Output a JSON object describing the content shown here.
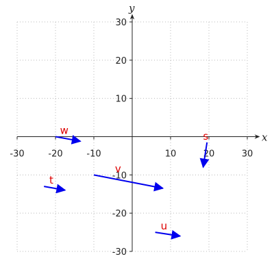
{
  "chart_data": {
    "type": "vector-field",
    "title": "",
    "xlabel": "x",
    "ylabel": "y",
    "xlim": [
      -30,
      30
    ],
    "ylim": [
      -30,
      30
    ],
    "xticks": [
      -30,
      -20,
      -10,
      10,
      20,
      30
    ],
    "yticks": [
      -30,
      -20,
      -10,
      10,
      20,
      30
    ],
    "grid": true,
    "vector_color": "#0000ee",
    "label_color": "#dd0000",
    "vectors": [
      {
        "name": "w",
        "tail": [
          -20,
          0
        ],
        "head": [
          -13.5,
          -1.2
        ]
      },
      {
        "name": "s",
        "tail": [
          19.5,
          -1.5
        ],
        "head": [
          18.5,
          -8
        ]
      },
      {
        "name": "v",
        "tail": [
          -10,
          -10
        ],
        "head": [
          8,
          -13.5
        ]
      },
      {
        "name": "t",
        "tail": [
          -23,
          -13
        ],
        "head": [
          -17.5,
          -14
        ]
      },
      {
        "name": "u",
        "tail": [
          6,
          -25
        ],
        "head": [
          12.5,
          -26
        ]
      }
    ]
  }
}
